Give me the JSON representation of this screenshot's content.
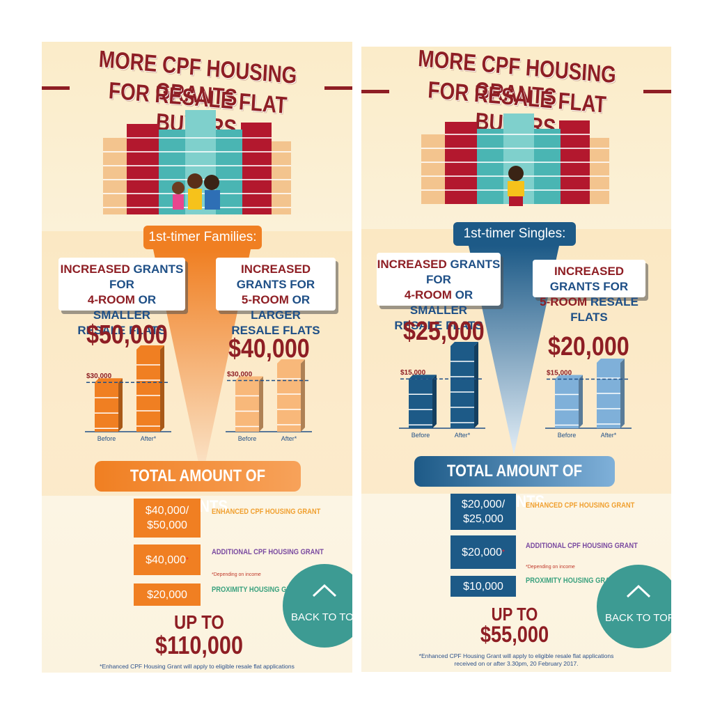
{
  "panels": [
    {
      "title_line1": "MORE CPF HOUSING GRANTS",
      "title_line2": "FOR RESALE FLAT BUYERS",
      "category": "1st-timer Families:",
      "left_card": {
        "w1": "INCREASED",
        "w2": "GRANTS FOR",
        "w3": "4-ROOM",
        "w4": "OR SMALLER",
        "w5": "RESALE FLATS"
      },
      "right_card": {
        "w1": "INCREASED",
        "w2": "GRANTS FOR",
        "w3": "5-ROOM",
        "w4": "OR LARGER",
        "w5": "RESALE FLATS"
      },
      "left_chart": {
        "big_value": "$50,000",
        "before_label": "$30,000",
        "x_before": "Before",
        "x_after": "After*"
      },
      "right_chart": {
        "big_value": "$40,000",
        "before_label": "$30,000",
        "x_before": "Before",
        "x_after": "After*"
      },
      "total_title": "TOTAL AMOUNT OF GRANTS",
      "grants": [
        {
          "amount": "$40,000/ $50,000",
          "label": "ENHANCED CPF HOUSING GRANT"
        },
        {
          "amount": "$40,000",
          "mark": "*",
          "label": "ADDITIONAL CPF HOUSING GRANT",
          "note": "*Depending on income"
        },
        {
          "amount": "$20,000",
          "label": "PROXIMITY HOUSING GRANT"
        }
      ],
      "up_to": "UP TO",
      "total_amount": "$110,000",
      "footnote": "*Enhanced CPF Housing Grant will apply to eligible resale flat applications",
      "footnote2": "",
      "back_to_top": "BACK TO TO"
    },
    {
      "title_line1": "MORE CPF HOUSING GRANTS",
      "title_line2": "FOR RESALE FLAT BUYERS",
      "category": "1st-timer Singles:",
      "left_card": {
        "w1": "INCREASED",
        "w2": "GRANTS FOR",
        "w3": "4-ROOM",
        "w4": "OR SMALLER",
        "w5": "RESALE FLATS"
      },
      "right_card": {
        "w1": "INCREASED",
        "w2": "GRANTS FOR",
        "w3": "5-ROOM",
        "w4": "RESALE FLATS"
      },
      "left_chart": {
        "big_value": "$25,000",
        "before_label": "$15,000",
        "x_before": "Before",
        "x_after": "After*"
      },
      "right_chart": {
        "big_value": "$20,000",
        "before_label": "$15,000",
        "x_before": "Before",
        "x_after": "After*"
      },
      "total_title": "TOTAL AMOUNT OF GRANTS",
      "grants": [
        {
          "amount": "$20,000/ $25,000",
          "label": "ENHANCED CPF HOUSING GRANT"
        },
        {
          "amount": "$20,000",
          "mark": "*",
          "label": "ADDITIONAL CPF HOUSING GRANT",
          "note": "*Depending on income"
        },
        {
          "amount": "$10,000",
          "label": "PROXIMITY HOUSING GRANT"
        }
      ],
      "up_to": "UP TO",
      "total_amount": "$55,000",
      "footnote": "*Enhanced CPF Housing Grant will apply to eligible resale flat applications",
      "footnote2": "received on or after 3.30pm, 20 February 2017.",
      "back_to_top": "BACK TO TOP"
    }
  ],
  "chart_data": [
    {
      "type": "bar",
      "categories": [
        "Before",
        "After*"
      ],
      "values": [
        30000,
        50000
      ],
      "color": "#f07f22"
    },
    {
      "type": "bar",
      "categories": [
        "Before",
        "After*"
      ],
      "values": [
        30000,
        40000
      ],
      "color": "#f8b87a"
    },
    {
      "type": "bar",
      "categories": [
        "Before",
        "After*"
      ],
      "values": [
        15000,
        25000
      ],
      "color": "#1d5a87"
    },
    {
      "type": "bar",
      "categories": [
        "Before",
        "After*"
      ],
      "values": [
        15000,
        20000
      ],
      "color": "#7fb0d9"
    }
  ],
  "colors": {
    "title_red": "#8e1e24",
    "family_orange": "#f07f22",
    "single_blue": "#1d5a87",
    "enhanced_label": "#f0a030",
    "additional_label": "#7a4aa0",
    "proximity_label": "#3aa17e",
    "back_to_top": "#3d9b93"
  }
}
